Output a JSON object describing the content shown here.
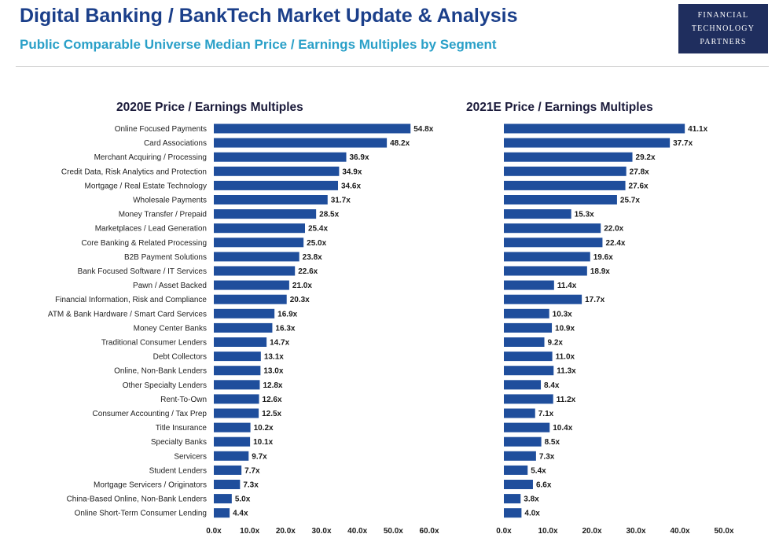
{
  "header": {
    "title": "Digital Banking / BankTech Market Update & Analysis",
    "subtitle": "Public Comparable Universe Median Price / Earnings Multiples by Segment"
  },
  "logo": {
    "line1": "FINANCIAL",
    "line2": "TECHNOLOGY",
    "line3": "PARTNERS"
  },
  "colors": {
    "bar": "#1f4e9c",
    "title": "#1b3f8a",
    "subtitle": "#2aa0c8",
    "logo_bg": "#1f2e5e"
  },
  "chart_data": [
    {
      "type": "bar",
      "orientation": "horizontal",
      "title": "2020E Price / Earnings Multiples",
      "categories": [
        "Online Focused Payments",
        "Card Associations",
        "Merchant Acquiring / Processing",
        "Credit Data, Risk Analytics and Protection",
        "Mortgage / Real Estate Technology",
        "Wholesale Payments",
        "Money Transfer / Prepaid",
        "Marketplaces / Lead Generation",
        "Core Banking & Related Processing",
        "B2B Payment Solutions",
        "Bank Focused Software / IT Services",
        "Pawn / Asset Backed",
        "Financial Information, Risk and Compliance",
        "ATM & Bank Hardware / Smart Card Services",
        "Money Center Banks",
        "Traditional Consumer Lenders",
        "Debt Collectors",
        "Online, Non-Bank Lenders",
        "Other Specialty Lenders",
        "Rent-To-Own",
        "Consumer Accounting / Tax Prep",
        "Title Insurance",
        "Specialty Banks",
        "Servicers",
        "Student Lenders",
        "Mortgage Servicers / Originators",
        "China-Based Online, Non-Bank Lenders",
        "Online Short-Term Consumer Lending"
      ],
      "values": [
        54.8,
        48.2,
        36.9,
        34.9,
        34.6,
        31.7,
        28.5,
        25.4,
        25.0,
        23.8,
        22.6,
        21.0,
        20.3,
        16.9,
        16.3,
        14.7,
        13.1,
        13.0,
        12.8,
        12.6,
        12.5,
        10.2,
        10.1,
        9.7,
        7.7,
        7.3,
        5.0,
        4.4
      ],
      "value_labels": [
        "54.8x",
        "48.2x",
        "36.9x",
        "34.9x",
        "34.6x",
        "31.7x",
        "28.5x",
        "25.4x",
        "25.0x",
        "23.8x",
        "22.6x",
        "21.0x",
        "20.3x",
        "16.9x",
        "16.3x",
        "14.7x",
        "13.1x",
        "13.0x",
        "12.8x",
        "12.6x",
        "12.5x",
        "10.2x",
        "10.1x",
        "9.7x",
        "7.7x",
        "7.3x",
        "5.0x",
        "4.4x"
      ],
      "xlim": [
        0,
        60
      ],
      "ticks": [
        0,
        10,
        20,
        30,
        40,
        50,
        60
      ],
      "tick_labels": [
        "0.0x",
        "10.0x",
        "20.0x",
        "30.0x",
        "40.0x",
        "50.0x",
        "60.0x"
      ],
      "grid": false,
      "legend": false
    },
    {
      "type": "bar",
      "orientation": "horizontal",
      "title": "2021E Price / Earnings Multiples",
      "categories": [
        "Online Focused Payments",
        "Card Associations",
        "Merchant Acquiring / Processing",
        "Credit Data, Risk Analytics and Protection",
        "Mortgage / Real Estate Technology",
        "Wholesale Payments",
        "Money Transfer / Prepaid",
        "Marketplaces / Lead Generation",
        "Core Banking & Related Processing",
        "B2B Payment Solutions",
        "Bank Focused Software / IT Services",
        "Pawn / Asset Backed",
        "Financial Information, Risk and Compliance",
        "ATM & Bank Hardware / Smart Card Services",
        "Money Center Banks",
        "Traditional Consumer Lenders",
        "Debt Collectors",
        "Online, Non-Bank Lenders",
        "Other Specialty Lenders",
        "Rent-To-Own",
        "Consumer Accounting / Tax Prep",
        "Title Insurance",
        "Specialty Banks",
        "Servicers",
        "Student Lenders",
        "Mortgage Servicers / Originators",
        "China-Based Online, Non-Bank Lenders",
        "Online Short-Term Consumer Lending"
      ],
      "values": [
        41.1,
        37.7,
        29.2,
        27.8,
        27.6,
        25.7,
        15.3,
        22.0,
        22.4,
        19.6,
        18.9,
        11.4,
        17.7,
        10.3,
        10.9,
        9.2,
        11.0,
        11.3,
        8.4,
        11.2,
        7.1,
        10.4,
        8.5,
        7.3,
        5.4,
        6.6,
        3.8,
        4.0
      ],
      "value_labels": [
        "41.1x",
        "37.7x",
        "29.2x",
        "27.8x",
        "27.6x",
        "25.7x",
        "15.3x",
        "22.0x",
        "22.4x",
        "19.6x",
        "18.9x",
        "11.4x",
        "17.7x",
        "10.3x",
        "10.9x",
        "9.2x",
        "11.0x",
        "11.3x",
        "8.4x",
        "11.2x",
        "7.1x",
        "10.4x",
        "8.5x",
        "7.3x",
        "5.4x",
        "6.6x",
        "3.8x",
        "4.0x"
      ],
      "xlim": [
        0,
        50
      ],
      "ticks": [
        0,
        10,
        20,
        30,
        40,
        50
      ],
      "tick_labels": [
        "0.0x",
        "10.0x",
        "20.0x",
        "30.0x",
        "40.0x",
        "50.0x"
      ],
      "grid": false,
      "legend": false
    }
  ]
}
